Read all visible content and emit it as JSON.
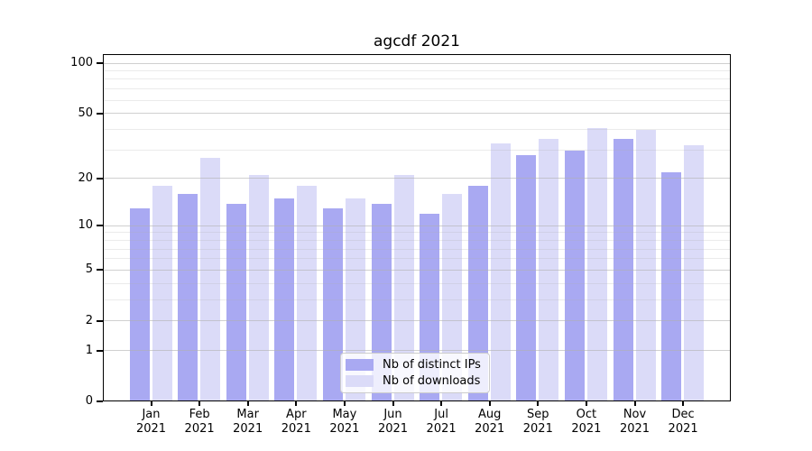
{
  "chart_data": {
    "type": "bar",
    "title": "agcdf 2021",
    "categories": [
      "Jan 2021",
      "Feb 2021",
      "Mar 2021",
      "Apr 2021",
      "May 2021",
      "Jun 2021",
      "Jul 2021",
      "Aug 2021",
      "Sep 2021",
      "Oct 2021",
      "Nov 2021",
      "Dec 2021"
    ],
    "series": [
      {
        "name": "Nb of distinct IPs",
        "color": "#a9a9f2",
        "values": [
          13,
          16,
          14,
          15,
          13,
          14,
          12,
          18,
          28,
          30,
          35,
          22
        ]
      },
      {
        "name": "Nb of downloads",
        "color": "#dbdbf8",
        "values": [
          18,
          27,
          21,
          18,
          15,
          21,
          16,
          33,
          35,
          41,
          40,
          32
        ]
      }
    ],
    "xlabel": "",
    "ylabel": "",
    "y_axis": {
      "scale": "log1p",
      "major_ticks": [
        0,
        1,
        2,
        5,
        10,
        20,
        50,
        100
      ],
      "minor_ticks": [
        3,
        4,
        6,
        7,
        8,
        9,
        30,
        40,
        60,
        70,
        80,
        90
      ],
      "ylim": [
        0,
        113
      ]
    },
    "grid": true,
    "legend_position": "lower center"
  },
  "colors": {
    "spine": "#000000",
    "grid": "#b0b0b0",
    "background": "#ffffff",
    "text": "#000000"
  }
}
